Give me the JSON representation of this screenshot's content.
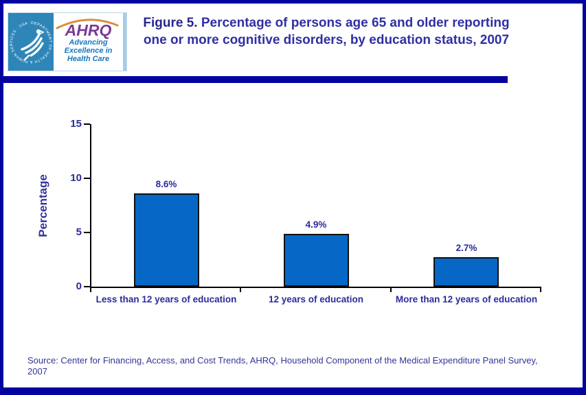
{
  "header": {
    "logo": {
      "hhs_seal_text": "DEPARTMENT OF HEALTH & HUMAN SERVICES · USA",
      "ahrq_acronym": "AHRQ",
      "tagline_lines": [
        "Advancing",
        "Excellence in",
        "Health Care"
      ]
    },
    "title": {
      "prefix": "Figure 5.",
      "line1": "Percentage of persons age 65 and older reporting",
      "line2": "one or more cognitive disorders, by education status, 2007"
    }
  },
  "chart_data": {
    "type": "bar",
    "title": "Percentage of persons age 65 and older reporting one or more cognitive disorders, by education status, 2007",
    "categories": [
      "Less than 12 years of education",
      "12 years of education",
      "More than 12 years of education"
    ],
    "values": [
      8.6,
      4.9,
      2.7
    ],
    "value_labels": [
      "8.6%",
      "4.9%",
      "2.7%"
    ],
    "xlabel": "",
    "ylabel": "Percentage",
    "ylim": [
      0,
      15
    ],
    "yticks": [
      0,
      5,
      10,
      15
    ],
    "grid": false,
    "legend": "none",
    "bar_color": "#0667C6"
  },
  "footer": {
    "source_lines": [
      "Source: Center for Financing, Access, and Cost Trends, AHRQ, Household Component of the Medical Expenditure Panel Survey,",
      "2007"
    ]
  },
  "colors": {
    "structural_navy": "#0303A0",
    "text_navy": "#2F2FA5",
    "bar_fill": "#0667C6",
    "hhs_blue": "#2E86B8",
    "ahrq_purple": "#7B3A96",
    "arc_orange": "#D98E3C",
    "tagline_blue": "#1576BE"
  }
}
